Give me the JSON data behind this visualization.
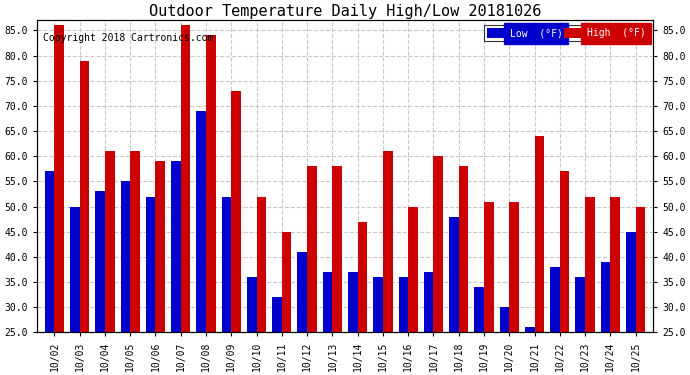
{
  "title": "Outdoor Temperature Daily High/Low 20181026",
  "copyright": "Copyright 2018 Cartronics.com",
  "categories": [
    "10/02",
    "10/03",
    "10/04",
    "10/05",
    "10/06",
    "10/07",
    "10/08",
    "10/09",
    "10/10",
    "10/11",
    "10/12",
    "10/13",
    "10/14",
    "10/15",
    "10/16",
    "10/17",
    "10/18",
    "10/19",
    "10/20",
    "10/21",
    "10/22",
    "10/23",
    "10/24",
    "10/25"
  ],
  "low": [
    57,
    50,
    53,
    55,
    52,
    59,
    69,
    52,
    36,
    32,
    41,
    37,
    37,
    36,
    36,
    37,
    48,
    34,
    30,
    26,
    38,
    36,
    39,
    45
  ],
  "high": [
    86,
    79,
    61,
    61,
    59,
    86,
    84,
    73,
    52,
    45,
    58,
    58,
    47,
    61,
    50,
    60,
    58,
    51,
    51,
    64,
    57,
    52,
    52,
    50
  ],
  "low_color": "#0000cc",
  "high_color": "#cc0000",
  "bg_color": "#ffffff",
  "plot_bg_color": "#ffffff",
  "grid_color": "#c8c8c8",
  "ylim": [
    25.0,
    87.0
  ],
  "yticks": [
    25.0,
    30.0,
    35.0,
    40.0,
    45.0,
    50.0,
    55.0,
    60.0,
    65.0,
    70.0,
    75.0,
    80.0,
    85.0
  ],
  "legend_low_label": "Low  (°F)",
  "legend_high_label": "High  (°F)",
  "title_fontsize": 11,
  "copyright_fontsize": 7,
  "tick_fontsize": 7,
  "bar_width": 0.38
}
